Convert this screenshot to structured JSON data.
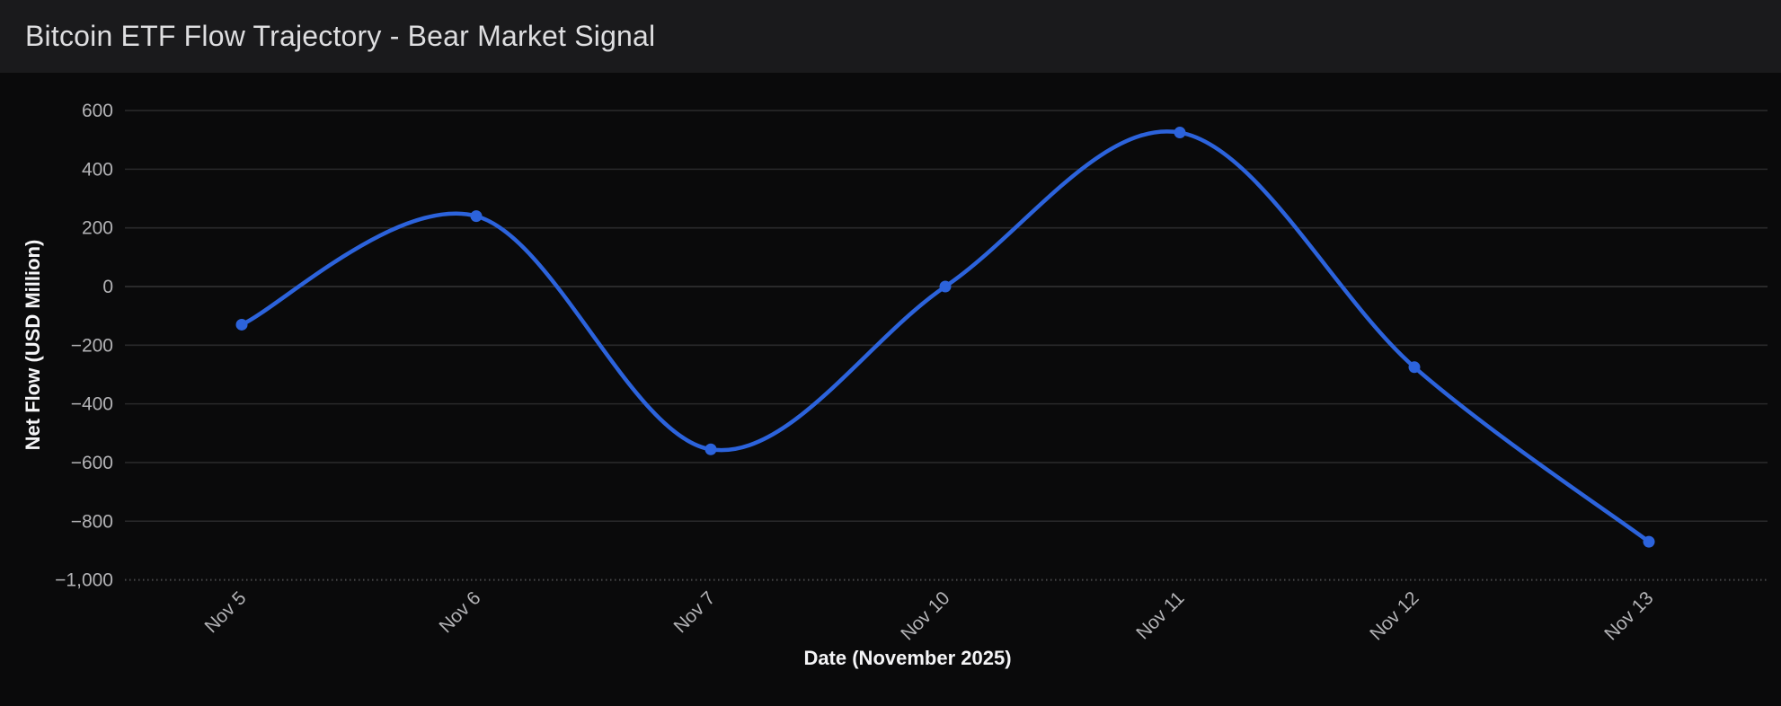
{
  "header": {
    "title": "Bitcoin ETF Flow Trajectory - Bear Market Signal"
  },
  "chart_data": {
    "type": "line",
    "title": "Bitcoin ETF Flow Trajectory - Bear Market Signal",
    "categories": [
      "Nov 5",
      "Nov 6",
      "Nov 7",
      "Nov 10",
      "Nov 11",
      "Nov 12",
      "Nov 13"
    ],
    "series": [
      {
        "name": "Net Flow",
        "values": [
          -130,
          240,
          -555,
          0,
          525,
          -275,
          -870
        ]
      }
    ],
    "xlabel": "Date (November 2025)",
    "ylabel": "Net Flow (USD Million)",
    "ylim": [
      -1000,
      600
    ],
    "y_ticks": [
      {
        "value": 600,
        "label": "600"
      },
      {
        "value": 400,
        "label": "400"
      },
      {
        "value": 200,
        "label": "200"
      },
      {
        "value": 0,
        "label": "0"
      },
      {
        "value": -200,
        "label": "−200"
      },
      {
        "value": -400,
        "label": "−400"
      },
      {
        "value": -600,
        "label": "−600"
      },
      {
        "value": -800,
        "label": "−800"
      },
      {
        "value": -1000,
        "label": "−1,000"
      }
    ],
    "grid": true,
    "legend": false,
    "curve": "smooth",
    "show_points": true
  },
  "theme": {
    "line_color": "#2c63dc",
    "point_color": "#2c63dc",
    "background": "#0a0a0b",
    "header_background": "#1a1a1c",
    "title_color": "#dedee0",
    "tick_label_color": "#b3b3b6",
    "axis_title_color": "#f5f5f7",
    "gridline_color": "#29292b",
    "zero_line_color": "#343436",
    "baseline_color": "#4a4a4c"
  }
}
